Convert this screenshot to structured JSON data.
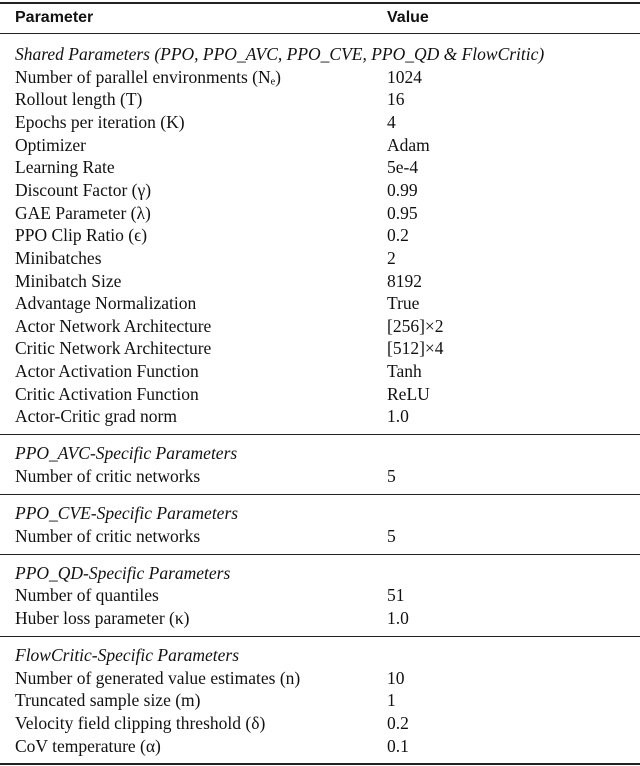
{
  "header": {
    "parameter": "Parameter",
    "value": "Value"
  },
  "sections": [
    {
      "title": "Shared Parameters (PPO, PPO_AVC, PPO_CVE, PPO_QD & FlowCritic)",
      "rows": [
        [
          "Number of parallel environments (Nₑ)",
          "1024"
        ],
        [
          "Rollout length (T)",
          "16"
        ],
        [
          "Epochs per iteration (K)",
          "4"
        ],
        [
          "Optimizer",
          "Adam"
        ],
        [
          "Learning Rate",
          "5e-4"
        ],
        [
          "Discount Factor (γ)",
          "0.99"
        ],
        [
          "GAE Parameter (λ)",
          "0.95"
        ],
        [
          "PPO Clip Ratio (ϵ)",
          "0.2"
        ],
        [
          "Minibatches",
          "2"
        ],
        [
          "Minibatch Size",
          "8192"
        ],
        [
          "Advantage Normalization",
          "True"
        ],
        [
          "Actor Network Architecture",
          "[256]×2"
        ],
        [
          "Critic Network Architecture",
          "[512]×4"
        ],
        [
          "Actor Activation Function",
          "Tanh"
        ],
        [
          "Critic Activation Function",
          "ReLU"
        ],
        [
          "Actor-Critic grad norm",
          "1.0"
        ]
      ]
    },
    {
      "title": "PPO_AVC-Specific Parameters",
      "rows": [
        [
          "Number of critic networks",
          "5"
        ]
      ]
    },
    {
      "title": "PPO_CVE-Specific Parameters",
      "rows": [
        [
          "Number of critic networks",
          "5"
        ]
      ]
    },
    {
      "title": "PPO_QD-Specific Parameters",
      "rows": [
        [
          "Number of quantiles",
          "51"
        ],
        [
          "Huber loss parameter (κ)",
          "1.0"
        ]
      ]
    },
    {
      "title": "FlowCritic-Specific Parameters",
      "rows": [
        [
          "Number of generated value estimates (n)",
          "10"
        ],
        [
          "Truncated sample size (m)",
          "1"
        ],
        [
          "Velocity field clipping threshold (δ)",
          "0.2"
        ],
        [
          "CoV temperature (α)",
          "0.1"
        ]
      ]
    }
  ]
}
